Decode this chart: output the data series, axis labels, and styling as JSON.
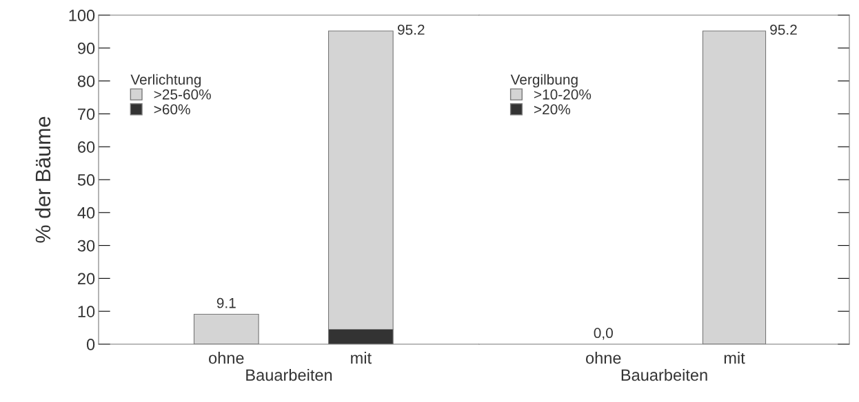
{
  "chart_data": [
    {
      "type": "bar",
      "stacked": true,
      "categories": [
        "ohne",
        "mit"
      ],
      "xlabel": "Bauarbeiten",
      "ylabel": "% der Bäume",
      "legend_title": "Verlichtung",
      "legend": "top left",
      "series": [
        {
          "name": ">60%",
          "color": "#333333",
          "values": [
            0,
            4.5
          ]
        },
        {
          "name": ">25-60%",
          "color": "#d4d4d4",
          "values": [
            9.1,
            90.7
          ]
        }
      ],
      "totals": [
        "9.1",
        "95.2"
      ],
      "ylim": [
        0,
        100
      ],
      "yticks": [
        0,
        10,
        20,
        30,
        40,
        50,
        60,
        70,
        80,
        90,
        100
      ],
      "grid": false
    },
    {
      "type": "bar",
      "stacked": true,
      "categories": [
        "ohne",
        "mit"
      ],
      "xlabel": "Bauarbeiten",
      "legend_title": "Vergilbung",
      "legend": "top left",
      "tick_labels": "x",
      "series": [
        {
          "name": ">20%",
          "color": "#333333",
          "values": [
            0,
            0
          ]
        },
        {
          "name": ">10-20%",
          "color": "#d4d4d4",
          "values": [
            0,
            95.2
          ]
        }
      ],
      "totals": [
        "0,0",
        "95.2"
      ],
      "ylim": [
        0,
        100
      ],
      "yticks": [
        0,
        10,
        20,
        30,
        40,
        50,
        60,
        70,
        80,
        90,
        100
      ],
      "grid": false
    }
  ]
}
